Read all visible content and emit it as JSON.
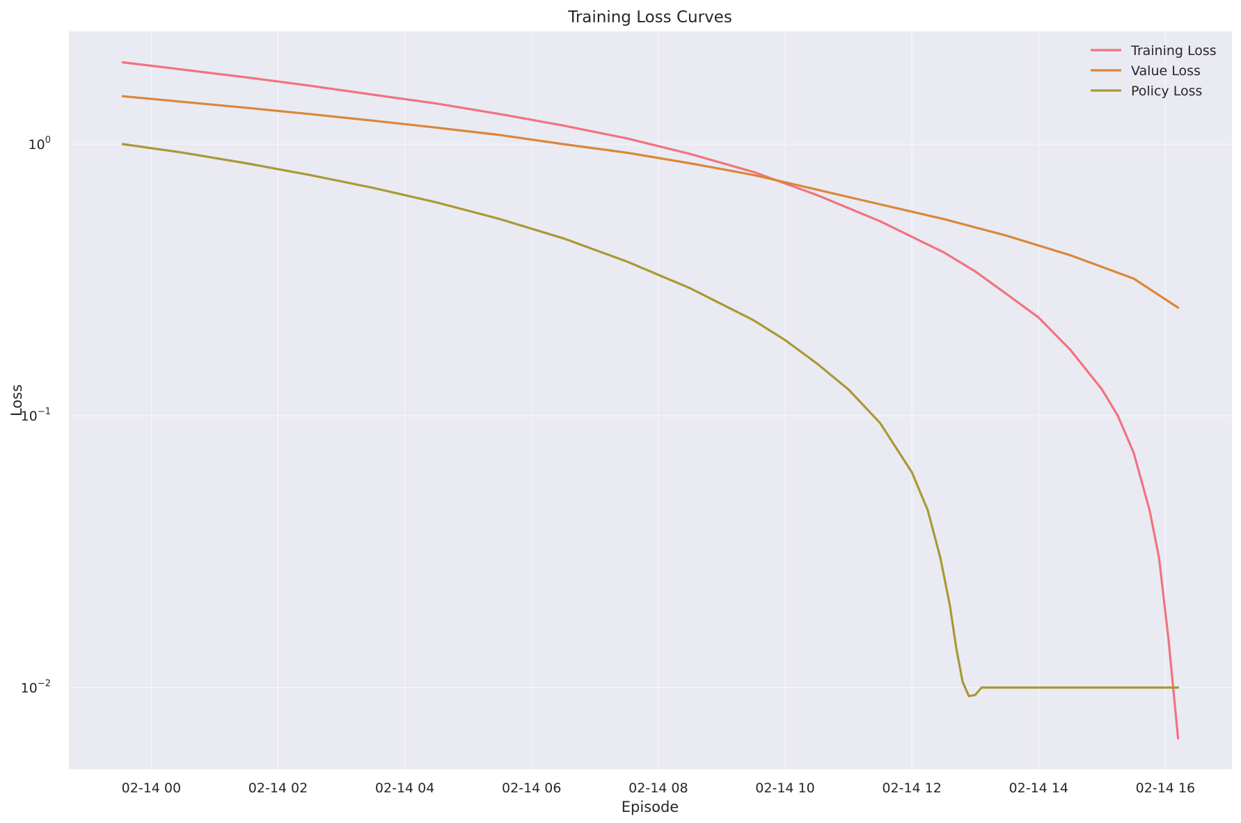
{
  "chart_data": {
    "type": "line",
    "title": "Training Loss Curves",
    "xlabel": "Episode",
    "ylabel": "Loss",
    "yscale": "log",
    "ylim": [
      0.005,
      2.6
    ],
    "xlim_hours": [
      -1.3,
      17.05
    ],
    "x_start_hour": -0.45,
    "x_end_hour": 16.2,
    "x_ticks": [
      {
        "hour": 0,
        "label": "02-14 00"
      },
      {
        "hour": 2,
        "label": "02-14 02"
      },
      {
        "hour": 4,
        "label": "02-14 04"
      },
      {
        "hour": 6,
        "label": "02-14 06"
      },
      {
        "hour": 8,
        "label": "02-14 08"
      },
      {
        "hour": 10,
        "label": "02-14 10"
      },
      {
        "hour": 12,
        "label": "02-14 12"
      },
      {
        "hour": 14,
        "label": "02-14 14"
      },
      {
        "hour": 16,
        "label": "02-14 16"
      }
    ],
    "y_ticks": [
      {
        "value": 1,
        "base": "10",
        "exp": "0"
      },
      {
        "value": 0.1,
        "base": "10",
        "exp": "−1"
      },
      {
        "value": 0.01,
        "base": "10",
        "exp": "−2"
      }
    ],
    "grid": true,
    "legend_position": "top-right",
    "series": [
      {
        "name": "Training Loss",
        "color": "#f2727f",
        "points": [
          [
            -0.45,
            2.0
          ],
          [
            0.5,
            1.88
          ],
          [
            1.5,
            1.76
          ],
          [
            2.5,
            1.64
          ],
          [
            3.5,
            1.52
          ],
          [
            4.5,
            1.41
          ],
          [
            5.5,
            1.29
          ],
          [
            6.5,
            1.17
          ],
          [
            7.5,
            1.05
          ],
          [
            8.5,
            0.92
          ],
          [
            9.5,
            0.79
          ],
          [
            10.5,
            0.65
          ],
          [
            11.5,
            0.52
          ],
          [
            12.5,
            0.4
          ],
          [
            13.0,
            0.34
          ],
          [
            13.5,
            0.28
          ],
          [
            14.0,
            0.23
          ],
          [
            14.5,
            0.175
          ],
          [
            15.0,
            0.125
          ],
          [
            15.25,
            0.1
          ],
          [
            15.5,
            0.073
          ],
          [
            15.75,
            0.045
          ],
          [
            15.9,
            0.03
          ],
          [
            16.05,
            0.015
          ],
          [
            16.2,
            0.0065
          ]
        ]
      },
      {
        "name": "Value Loss",
        "color": "#db8636",
        "points": [
          [
            -0.45,
            1.5
          ],
          [
            0.5,
            1.43
          ],
          [
            1.5,
            1.36
          ],
          [
            2.5,
            1.29
          ],
          [
            3.5,
            1.22
          ],
          [
            4.5,
            1.15
          ],
          [
            5.5,
            1.08
          ],
          [
            6.5,
            1.0
          ],
          [
            7.5,
            0.93
          ],
          [
            8.5,
            0.85
          ],
          [
            9.5,
            0.77
          ],
          [
            10.5,
            0.68
          ],
          [
            11.5,
            0.6
          ],
          [
            12.5,
            0.53
          ],
          [
            13.5,
            0.46
          ],
          [
            14.5,
            0.39
          ],
          [
            15.5,
            0.32
          ],
          [
            16.2,
            0.25
          ]
        ]
      },
      {
        "name": "Policy Loss",
        "color": "#a89934",
        "points": [
          [
            -0.45,
            1.0
          ],
          [
            0.5,
            0.93
          ],
          [
            1.5,
            0.85
          ],
          [
            2.5,
            0.77
          ],
          [
            3.5,
            0.69
          ],
          [
            4.5,
            0.61
          ],
          [
            5.5,
            0.53
          ],
          [
            6.5,
            0.45
          ],
          [
            7.5,
            0.37
          ],
          [
            8.5,
            0.295
          ],
          [
            9.5,
            0.225
          ],
          [
            10.0,
            0.19
          ],
          [
            10.5,
            0.156
          ],
          [
            11.0,
            0.125
          ],
          [
            11.5,
            0.094
          ],
          [
            12.0,
            0.062
          ],
          [
            12.25,
            0.045
          ],
          [
            12.45,
            0.03
          ],
          [
            12.6,
            0.02
          ],
          [
            12.7,
            0.014
          ],
          [
            12.8,
            0.0105
          ],
          [
            12.9,
            0.0093
          ],
          [
            13.0,
            0.0094
          ],
          [
            13.1,
            0.01
          ],
          [
            16.2,
            0.01
          ]
        ]
      }
    ]
  }
}
